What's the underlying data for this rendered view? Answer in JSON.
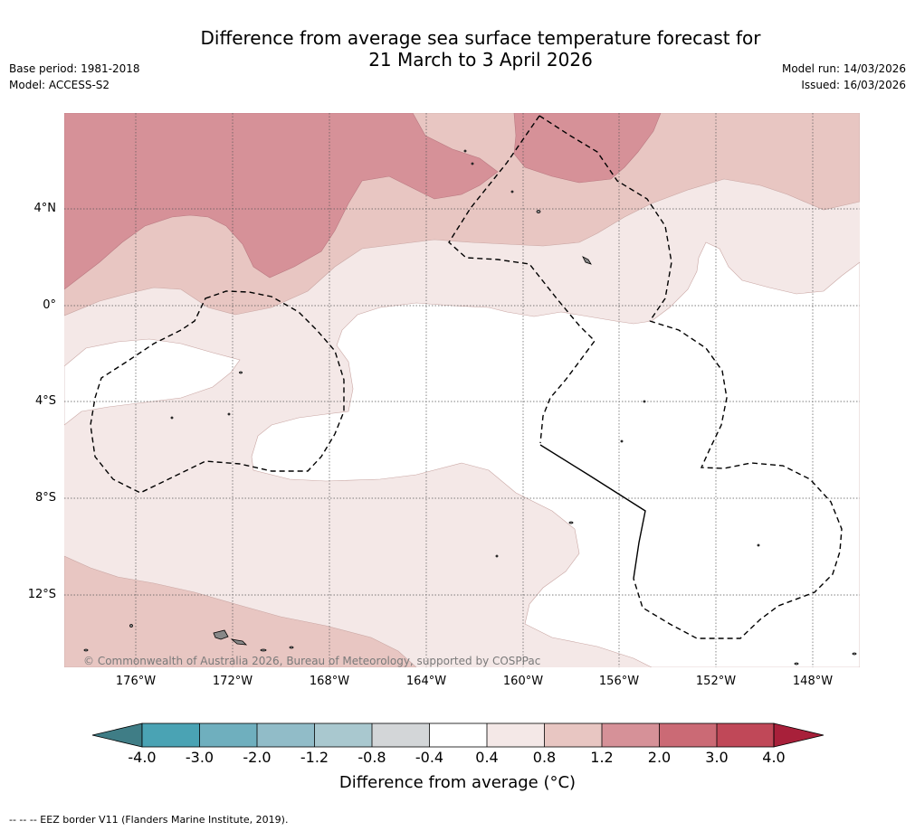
{
  "title": {
    "line1": "Difference from average sea surface temperature forecast for",
    "line2": "21 March to 3 April 2026"
  },
  "meta": {
    "base_period": "Base period: 1981-2018",
    "model": "Model: ACCESS-S2",
    "model_run": "Model run: 14/03/2026",
    "issued": "Issued: 16/03/2026"
  },
  "map": {
    "latitude_labels": [
      "4°N",
      "0°",
      "4°S",
      "8°S",
      "12°S"
    ],
    "longitude_labels": [
      "176°W",
      "172°W",
      "168°W",
      "164°W",
      "160°W",
      "156°W",
      "152°W",
      "148°W"
    ],
    "copyright": "© Commonwealth of Australia 2026, Bureau of Meteorology, supported by COSPPac"
  },
  "colorbar": {
    "ticks": [
      "-4.0",
      "-3.0",
      "-2.0",
      "-1.2",
      "-0.8",
      "-0.4",
      "0.4",
      "0.8",
      "1.2",
      "2.0",
      "3.0",
      "4.0"
    ],
    "colors": [
      "#3f7d86",
      "#4aa3b4",
      "#6fafbe",
      "#91bcc8",
      "#a9c8cf",
      "#d3d6d8",
      "#ffffff",
      "#f4e8e7",
      "#e8c6c2",
      "#d69198",
      "#cb6a75",
      "#c04858",
      "#a8203a"
    ],
    "label": "Difference from average (°C)"
  },
  "footer": "--  --  -- EEZ border V11 (Flanders Marine Institute, 2019)."
}
